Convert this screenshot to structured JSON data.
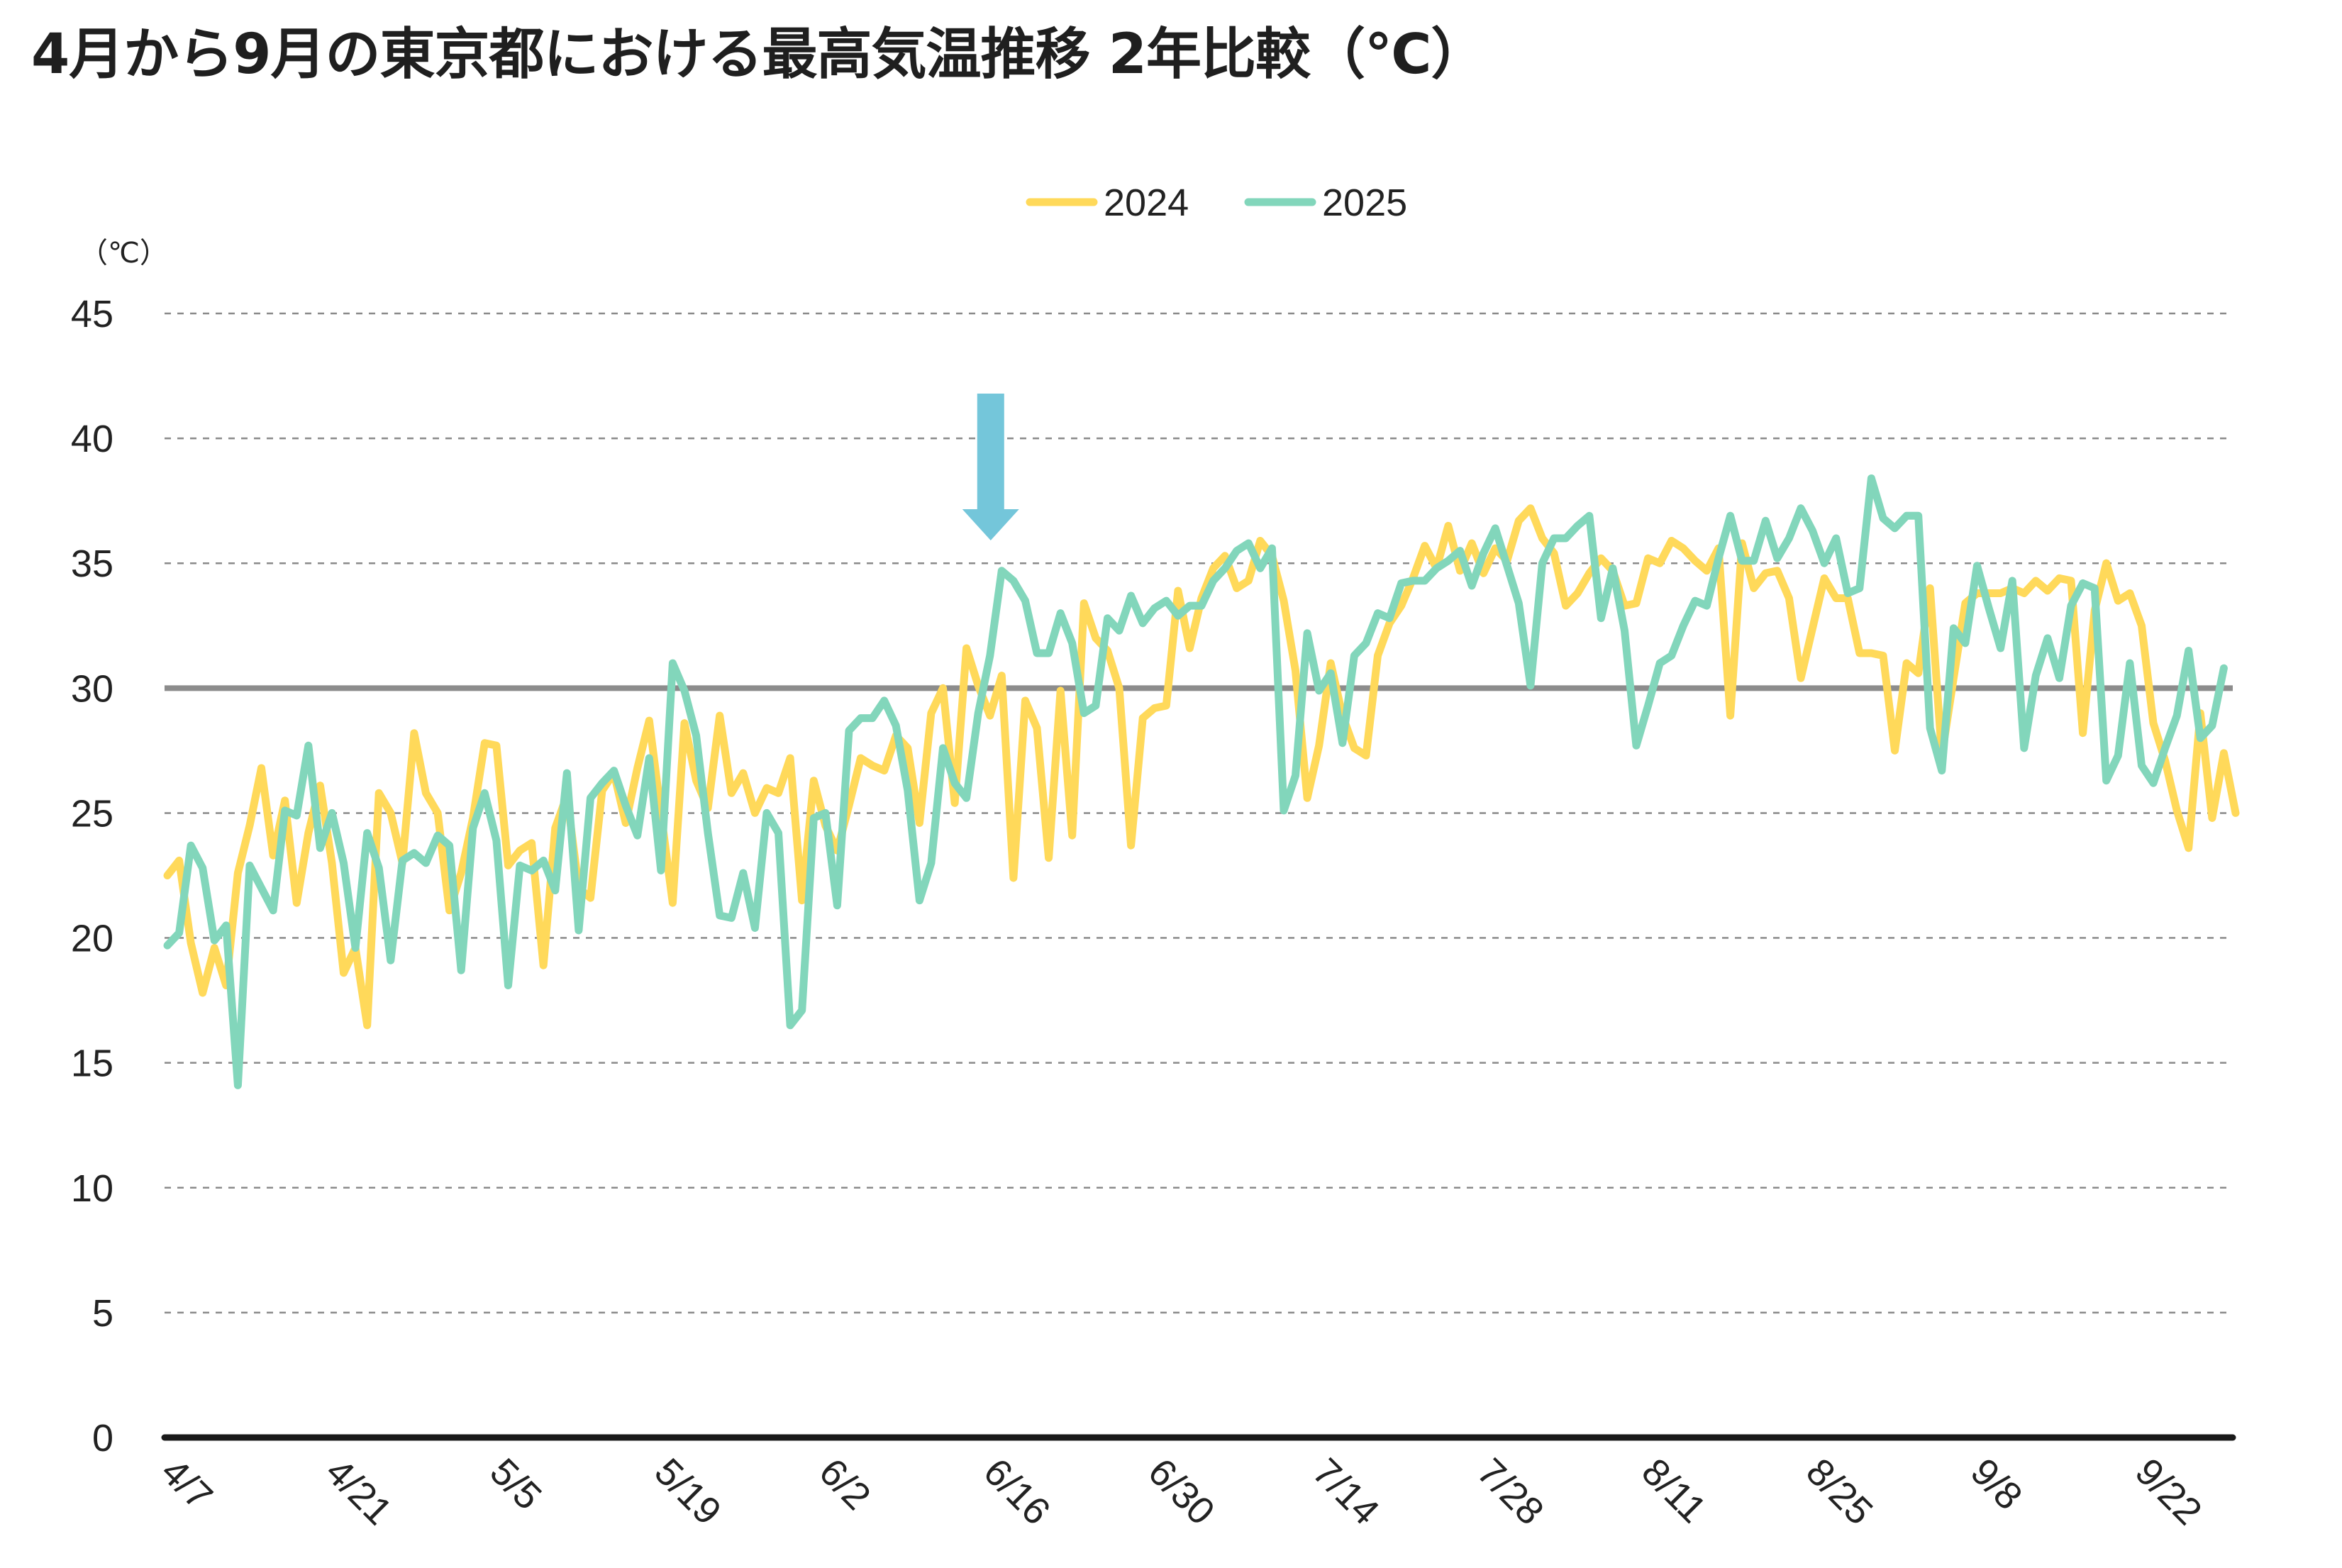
{
  "title": "4月から9月の東京都における最高気温推移 2年比較（℃）",
  "chart_data": {
    "type": "line",
    "title": "4月から9月の東京都における最高気温推移 2年比較（℃）",
    "ylabel": "（℃）",
    "ylim": [
      0,
      45
    ],
    "y_ticks": [
      0,
      5,
      10,
      15,
      20,
      25,
      30,
      35,
      40,
      45
    ],
    "grid": true,
    "legend_position": "top-center",
    "reference_line": 30,
    "x_start": "4/7",
    "x_end": "9/29",
    "annotation": {
      "type": "arrow",
      "x": "6/16"
    },
    "x_tick_labels": [
      "4/7",
      "4/21",
      "5/5",
      "5/19",
      "6/2",
      "6/16",
      "6/30",
      "7/14",
      "7/28",
      "8/11",
      "8/25",
      "9/8",
      "9/22"
    ],
    "series": [
      {
        "name": "2024",
        "color": "#FFD95A",
        "values": [
          22.5,
          23.1,
          19.8,
          17.8,
          19.6,
          18.1,
          22.6,
          24.5,
          26.8,
          23.3,
          25.5,
          21.4,
          24.2,
          26.1,
          23.0,
          18.6,
          19.6,
          16.5,
          25.8,
          25.0,
          23.0,
          28.2,
          25.8,
          25.0,
          21.1,
          22.6,
          24.8,
          27.8,
          27.7,
          22.9,
          23.5,
          23.8,
          18.9,
          24.4,
          25.7,
          22.0,
          21.6,
          25.9,
          26.6,
          24.6,
          26.8,
          28.7,
          25.0,
          21.4,
          28.6,
          26.3,
          25.2,
          28.9,
          25.8,
          26.6,
          25.0,
          26.0,
          25.8,
          27.2,
          21.5,
          26.3,
          24.5,
          23.5,
          25.3,
          27.2,
          26.9,
          26.7,
          28.1,
          27.6,
          24.6,
          29.0,
          30.0,
          25.4,
          31.6,
          30.1,
          28.9,
          30.5,
          22.4,
          29.5,
          28.4,
          23.2,
          29.9,
          24.1,
          33.4,
          32.0,
          31.5,
          30.0,
          23.7,
          28.8,
          29.2,
          29.3,
          33.9,
          31.6,
          33.6,
          34.8,
          35.3,
          34.0,
          34.3,
          35.9,
          35.3,
          33.5,
          30.7,
          25.6,
          27.7,
          31.0,
          28.9,
          27.6,
          27.3,
          31.3,
          32.6,
          33.3,
          34.4,
          35.7,
          34.8,
          36.5,
          34.7,
          35.8,
          34.6,
          35.6,
          35.1,
          36.7,
          37.2,
          36.0,
          35.4,
          33.3,
          33.8,
          34.6,
          35.2,
          34.7,
          33.3,
          33.4,
          35.2,
          35.0,
          35.9,
          35.6,
          35.1,
          34.7,
          35.6,
          28.9,
          35.8,
          34.0,
          34.6,
          34.7,
          33.6,
          30.4,
          32.4,
          34.4,
          33.6,
          33.6,
          31.4,
          31.4,
          31.3,
          27.5,
          31.0,
          30.6,
          34.0,
          27.3,
          30.4,
          33.4,
          33.8,
          33.8,
          33.8,
          34.0,
          33.8,
          34.3,
          33.9,
          34.4,
          34.3,
          28.2,
          33.1,
          35.0,
          33.5,
          33.8,
          32.5,
          28.6,
          27.1,
          25.1,
          23.6,
          29.0,
          24.8,
          27.4,
          25.0
        ]
      },
      {
        "name": "2025",
        "color": "#82D6BB",
        "values": [
          19.7,
          20.2,
          23.7,
          22.8,
          19.9,
          20.5,
          14.1,
          22.9,
          22.0,
          21.1,
          25.1,
          24.9,
          27.7,
          23.6,
          25.0,
          23.0,
          19.6,
          24.2,
          22.8,
          19.1,
          23.1,
          23.4,
          23.0,
          24.1,
          23.7,
          18.7,
          24.4,
          25.8,
          23.9,
          18.1,
          22.9,
          22.7,
          23.1,
          21.9,
          26.6,
          20.3,
          25.6,
          26.2,
          26.7,
          25.3,
          24.1,
          27.2,
          22.7,
          31.0,
          29.9,
          28.1,
          24.2,
          20.9,
          20.8,
          22.6,
          20.4,
          25.0,
          24.2,
          16.5,
          17.1,
          24.8,
          25.0,
          21.3,
          28.3,
          28.8,
          28.8,
          29.5,
          28.5,
          25.9,
          21.5,
          23.0,
          27.6,
          26.2,
          25.6,
          29.0,
          31.3,
          34.7,
          34.3,
          33.5,
          31.4,
          31.4,
          33.0,
          31.8,
          29.0,
          29.3,
          32.8,
          32.3,
          33.7,
          32.6,
          33.2,
          33.5,
          32.9,
          33.3,
          33.3,
          34.3,
          34.8,
          35.5,
          35.8,
          34.8,
          35.6,
          25.1,
          26.5,
          32.2,
          29.9,
          30.6,
          27.8,
          31.3,
          31.8,
          33.0,
          32.8,
          34.2,
          34.3,
          34.3,
          34.8,
          35.1,
          35.5,
          34.1,
          35.4,
          36.4,
          34.9,
          33.4,
          30.1,
          35.0,
          36.0,
          36.0,
          36.5,
          36.9,
          32.8,
          34.8,
          32.3,
          27.7,
          29.3,
          31.0,
          31.3,
          32.5,
          33.5,
          33.3,
          35.2,
          36.9,
          35.1,
          35.1,
          36.7,
          35.2,
          36.0,
          37.2,
          36.3,
          35.0,
          36.0,
          33.8,
          34.0,
          38.4,
          36.8,
          36.4,
          36.9,
          36.9,
          28.4,
          26.7,
          32.4,
          31.8,
          34.9,
          33.2,
          31.6,
          34.3,
          27.6,
          30.5,
          32.0,
          30.4,
          33.3,
          34.2,
          34.0,
          26.3,
          27.3,
          31.0,
          26.9,
          26.2,
          27.6,
          28.9,
          31.5,
          28.0,
          28.5,
          30.8
        ]
      }
    ]
  }
}
